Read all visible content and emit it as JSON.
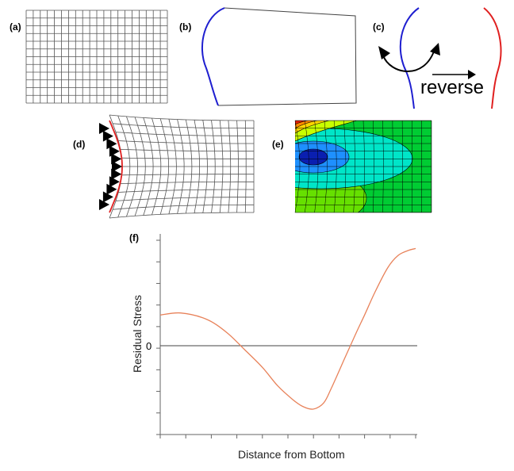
{
  "panels": {
    "a": {
      "label": "(a)",
      "cols": 20,
      "rows": 12
    },
    "b": {
      "label": "(b)"
    },
    "c": {
      "label": "(c)",
      "text": "reverse"
    },
    "d": {
      "label": "(d)",
      "cols": 17,
      "rows": 12,
      "supports": 11
    },
    "e": {
      "label": "(e)",
      "cols": 14,
      "rows": 12
    },
    "f": {
      "label": "(f)"
    }
  },
  "colors": {
    "blue_edge": "#1f1fd0",
    "red_edge": "#e02020",
    "mesh": "#555555",
    "curve": "#e8825a",
    "contour_colors": [
      "#00cc33",
      "#00e5c8",
      "#1e90ff",
      "#0a1fb0",
      "#66e000",
      "#c8ff00",
      "#ffd400",
      "#ff8c00",
      "#e82000"
    ]
  },
  "chart_data": {
    "type": "line",
    "title": "",
    "xlabel": "Distance from Bottom",
    "ylabel": "Residual Stress",
    "y_zero_label": "0",
    "xlim": [
      0,
      1
    ],
    "ylim": [
      -1.15,
      1
    ],
    "x_ticks": 11,
    "y_ticks": 10,
    "grid": false,
    "series": [
      {
        "x": [
          0,
          0.08,
          0.18,
          0.26,
          0.33,
          0.4,
          0.46,
          0.52,
          0.56,
          0.6,
          0.64,
          0.67,
          0.72,
          0.77,
          0.8,
          0.84,
          0.89,
          0.93,
          0.97,
          1.0
        ],
        "y": [
          0.3,
          0.32,
          0.26,
          0.13,
          -0.05,
          -0.28,
          -0.52,
          -0.7,
          -0.79,
          -0.82,
          -0.74,
          -0.55,
          -0.18,
          0.14,
          0.3,
          0.52,
          0.76,
          0.88,
          0.93,
          0.95
        ]
      }
    ]
  }
}
